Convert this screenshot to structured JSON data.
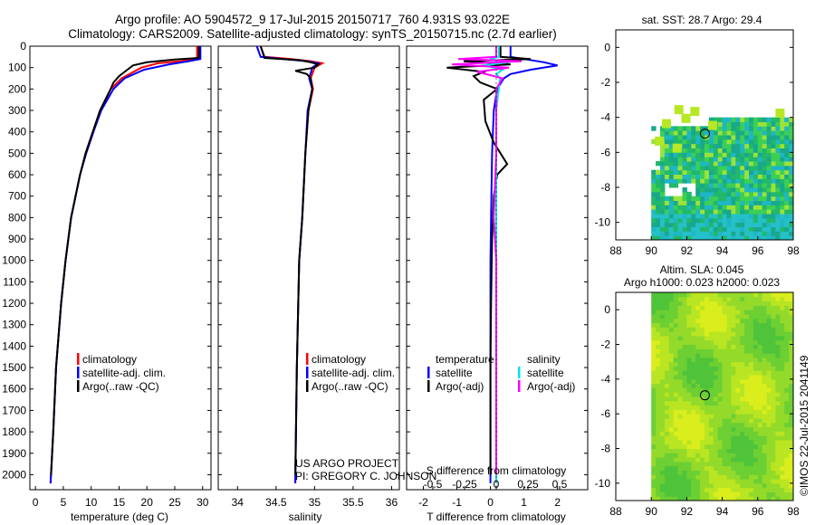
{
  "header": {
    "title_line1": "Argo profile: AO 5904572_9 17-Jul-2015 20150717_760 4.931S 93.022E",
    "title_line2": "Climatology: CARS2009. Satellite-adjusted climatology: synTS_20150715.nc (2.7d earlier)"
  },
  "credits": {
    "project": "US ARGO PROJECT",
    "pi": "PI: GREGORY C. JOHNSON",
    "stamp": "©IMOS 22-Jul-2015 2041149"
  },
  "colors": {
    "climatology": "#ff0000",
    "satellite": "#0000ff",
    "argo": "#000000",
    "satellite_salinity": "#00e5e5",
    "argo_salinity_adj": "#ff00ff"
  },
  "chart_data": [
    {
      "type": "line",
      "id": "temperature",
      "xlabel": "temperature (deg C)",
      "ylabel": "",
      "xlim": [
        -1,
        31.5
      ],
      "ylim": [
        2070,
        0
      ],
      "xticks": [
        0,
        5,
        10,
        15,
        20,
        25,
        30
      ],
      "yticks": [
        0,
        100,
        200,
        300,
        400,
        500,
        600,
        700,
        800,
        900,
        1000,
        1100,
        1200,
        1300,
        1400,
        1500,
        1600,
        1700,
        1800,
        1900,
        2000
      ],
      "legend": [
        "climatology",
        "satellite-adj. clim.",
        "Argo(..raw -QC)"
      ],
      "series": [
        {
          "name": "climatology",
          "color": "#ff0000",
          "depth": [
            0,
            60,
            70,
            80,
            100,
            150,
            200,
            300,
            400,
            500,
            600,
            800,
            1000,
            1200,
            1500,
            1800,
            2040
          ],
          "values": [
            29.0,
            29.0,
            26.0,
            22.0,
            19.0,
            15.5,
            13.5,
            11.6,
            10.3,
            9.0,
            8.0,
            6.4,
            5.4,
            4.6,
            3.7,
            3.2,
            2.7
          ]
        },
        {
          "name": "satellite-adj. clim.",
          "color": "#0000ff",
          "depth": [
            0,
            60,
            70,
            85,
            110,
            150,
            200,
            300,
            400,
            500,
            600,
            800,
            1000,
            1200,
            1500,
            1800,
            2040
          ],
          "values": [
            29.6,
            29.6,
            27.5,
            24.0,
            19.5,
            16.0,
            14.0,
            11.8,
            10.4,
            9.1,
            8.0,
            6.4,
            5.4,
            4.6,
            3.7,
            3.2,
            2.7
          ]
        },
        {
          "name": "Argo(..raw -QC)",
          "color": "#000000",
          "depth": [
            0,
            55,
            62,
            75,
            90,
            110,
            140,
            170,
            200,
            300,
            400,
            500,
            600,
            800,
            1000,
            1200,
            1500,
            1800,
            2000
          ],
          "values": [
            29.3,
            29.3,
            25.0,
            20.0,
            17.5,
            16.5,
            15.0,
            14.0,
            13.5,
            11.6,
            10.3,
            9.0,
            8.0,
            6.4,
            5.4,
            4.6,
            3.7,
            3.2,
            2.8
          ]
        }
      ]
    },
    {
      "type": "line",
      "id": "salinity",
      "xlabel": "salinity",
      "ylabel": "",
      "xlim": [
        33.75,
        36.1
      ],
      "ylim": [
        2070,
        0
      ],
      "xticks": [
        34,
        34.5,
        35,
        35.5,
        36
      ],
      "xticklabels": [
        "34",
        "34.5",
        "35",
        "35.5",
        "36"
      ],
      "legend": [
        "climatology",
        "satellite-adj. clim.",
        "Argo(..raw -QC)"
      ],
      "series": [
        {
          "name": "climatology",
          "color": "#ff0000",
          "depth": [
            0,
            50,
            60,
            70,
            80,
            100,
            150,
            200,
            300,
            500,
            800,
            1000,
            1500,
            2040
          ],
          "values": [
            34.3,
            34.35,
            34.7,
            34.95,
            35.1,
            35.0,
            34.95,
            34.98,
            34.92,
            34.88,
            34.84,
            34.8,
            34.77,
            34.75
          ]
        },
        {
          "name": "satellite-adj. clim.",
          "color": "#0000ff",
          "depth": [
            0,
            50,
            60,
            70,
            80,
            100,
            150,
            200,
            300,
            500,
            800,
            1000,
            1500,
            2040
          ],
          "values": [
            34.25,
            34.3,
            34.6,
            34.9,
            35.05,
            34.97,
            34.93,
            34.97,
            34.91,
            34.88,
            34.84,
            34.8,
            34.77,
            34.75
          ]
        },
        {
          "name": "Argo(..raw -QC)",
          "color": "#000000",
          "depth": [
            0,
            55,
            65,
            75,
            85,
            100,
            115,
            130,
            150,
            200,
            300,
            500,
            800,
            1000,
            1500,
            2000
          ],
          "values": [
            34.3,
            34.35,
            34.8,
            34.95,
            35.05,
            35.0,
            34.75,
            34.9,
            34.95,
            34.97,
            34.92,
            34.88,
            34.84,
            34.8,
            34.77,
            34.75
          ]
        }
      ]
    },
    {
      "type": "line",
      "id": "difference",
      "xlabel": "T difference from climatology",
      "xlabel_top": "S difference from climatology",
      "ylabel": "",
      "xlim": [
        -2.5,
        2.9
      ],
      "ylim": [
        2070,
        0
      ],
      "xticks": [
        -2,
        -1,
        0,
        1,
        2
      ],
      "sticks": [
        -0.5,
        -0.25,
        0,
        0.25,
        0.5
      ],
      "sticklabels": [
        "-0.5",
        "-0.25",
        "0",
        "0.25",
        "0.5"
      ],
      "legend_temperature_heading": "temperature",
      "legend_salinity_heading": "salinity",
      "legend": [
        "satellite",
        "Argo(-adj)",
        "satellite",
        "Argo(-adj)"
      ],
      "series": [
        {
          "name": "satellite",
          "group": "temperature",
          "color": "#0000ff",
          "depth": [
            0,
            50,
            60,
            75,
            90,
            110,
            130,
            150,
            200,
            300,
            500,
            800,
            1000,
            1500,
            2040
          ],
          "values": [
            0.6,
            0.6,
            1.0,
            1.6,
            2.0,
            1.2,
            0.6,
            0.4,
            0.2,
            0.1,
            0.05,
            0.02,
            0.0,
            0.0,
            0.0
          ]
        },
        {
          "name": "Argo(-adj)",
          "group": "temperature",
          "color": "#000000",
          "depth": [
            0,
            50,
            60,
            70,
            85,
            100,
            120,
            140,
            170,
            200,
            250,
            350,
            450,
            550,
            600,
            700,
            900,
            1200,
            1500,
            2000
          ],
          "values": [
            0.3,
            0.3,
            1.2,
            -0.8,
            0.6,
            -1.3,
            -0.2,
            -0.5,
            -0.3,
            0.2,
            -0.2,
            -0.15,
            0.1,
            0.5,
            0.2,
            0.1,
            0.05,
            0.02,
            0.0,
            0.0
          ]
        },
        {
          "name": "satellite",
          "group": "salinity",
          "color": "#00e5e5",
          "depth": [
            0,
            50,
            60,
            75,
            90,
            110,
            130,
            150,
            200,
            300,
            500,
            800,
            1000,
            1500,
            2040
          ],
          "values": [
            0.02,
            0.02,
            -0.05,
            0.1,
            -0.1,
            0.05,
            0.0,
            0.03,
            0.02,
            0.0,
            0.0,
            0.0,
            0.0,
            0.0,
            0.0
          ]
        },
        {
          "name": "Argo(-adj)",
          "group": "salinity",
          "color": "#ff00ff",
          "depth": [
            0,
            50,
            60,
            70,
            85,
            100,
            120,
            150,
            200,
            300,
            500,
            800,
            1000,
            1500,
            2000
          ],
          "values": [
            0.0,
            0.0,
            -0.3,
            0.2,
            -0.35,
            0.1,
            -0.15,
            0.05,
            0.0,
            0.0,
            0.0,
            -0.02,
            0.0,
            0.0,
            0.0
          ]
        }
      ]
    },
    {
      "type": "heatmap",
      "id": "sst_map",
      "title": "sat. SST: 28.7 Argo: 29.4",
      "xlim": [
        88,
        98
      ],
      "ylim": [
        -11,
        1
      ],
      "xticks": [
        88,
        90,
        92,
        94,
        96,
        98
      ],
      "yticks": [
        0,
        -2,
        -4,
        -6,
        -8,
        -10
      ],
      "profile_location": [
        93.022,
        -4.931
      ]
    },
    {
      "type": "heatmap",
      "id": "sla_map",
      "title_line1": "Altim. SLA: 0.045",
      "title_line2": "Argo h1000: 0.023 h2000: 0.023",
      "xlim": [
        88,
        98
      ],
      "ylim": [
        -11,
        1
      ],
      "xticks": [
        88,
        90,
        92,
        94,
        96,
        98
      ],
      "yticks": [
        0,
        -2,
        -4,
        -6,
        -8,
        -10
      ],
      "profile_location": [
        93.022,
        -4.931
      ]
    }
  ]
}
